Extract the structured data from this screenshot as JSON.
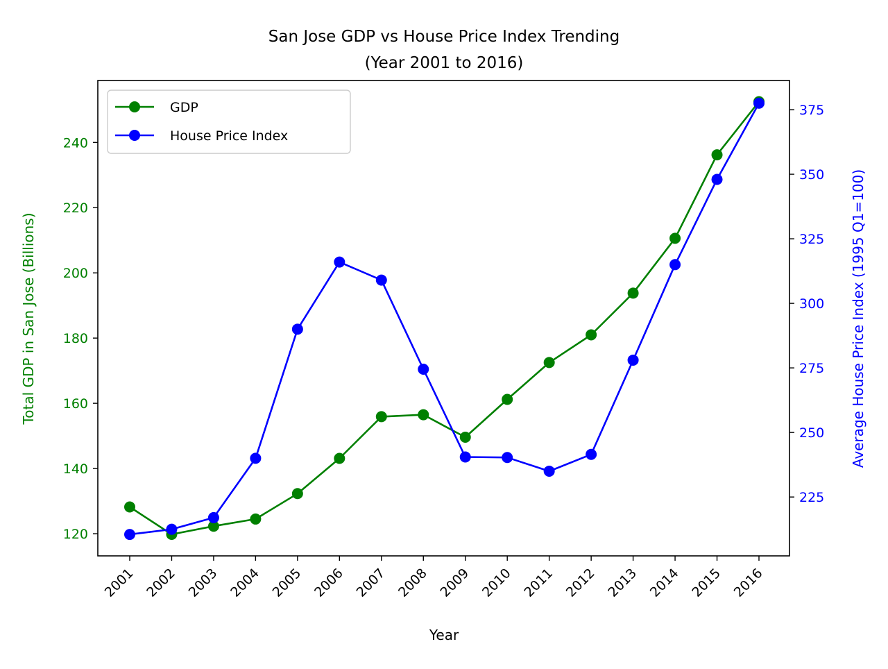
{
  "chart_data": {
    "type": "line",
    "title": "San Jose GDP vs House Price Index Trending",
    "subtitle": "(Year 2001 to 2016)",
    "xlabel": "Year",
    "categories": [
      "2001",
      "2002",
      "2003",
      "2004",
      "2005",
      "2006",
      "2007",
      "2008",
      "2009",
      "2010",
      "2011",
      "2012",
      "2013",
      "2014",
      "2015",
      "2016"
    ],
    "grid": false,
    "legend_position": "top-left",
    "series": [
      {
        "name": "GDP",
        "axis": "left",
        "color": "#008000",
        "values": [
          128.2,
          119.8,
          122.3,
          124.5,
          132.3,
          143.1,
          155.9,
          156.5,
          149.6,
          161.2,
          172.5,
          181.0,
          193.8,
          210.6,
          236.2,
          252.5
        ]
      },
      {
        "name": "House Price Index",
        "axis": "right",
        "color": "#0000ff",
        "values": [
          210.5,
          212.5,
          217.0,
          240.0,
          290.0,
          316.0,
          309.0,
          274.5,
          240.5,
          240.3,
          235.0,
          241.5,
          278.0,
          315.0,
          348.0,
          377.5
        ]
      }
    ],
    "y_left": {
      "label": "Total GDP in San Jose (Billions)",
      "color": "#008000",
      "ticks": [
        120,
        140,
        160,
        180,
        200,
        220,
        240
      ],
      "range": [
        113.2,
        259.0
      ]
    },
    "y_right": {
      "label": "Average House Price Index (1995 Q1=100)",
      "color": "#0000ff",
      "ticks": [
        225,
        250,
        275,
        300,
        325,
        350,
        375
      ],
      "range": [
        202.2,
        386.3
      ]
    }
  }
}
